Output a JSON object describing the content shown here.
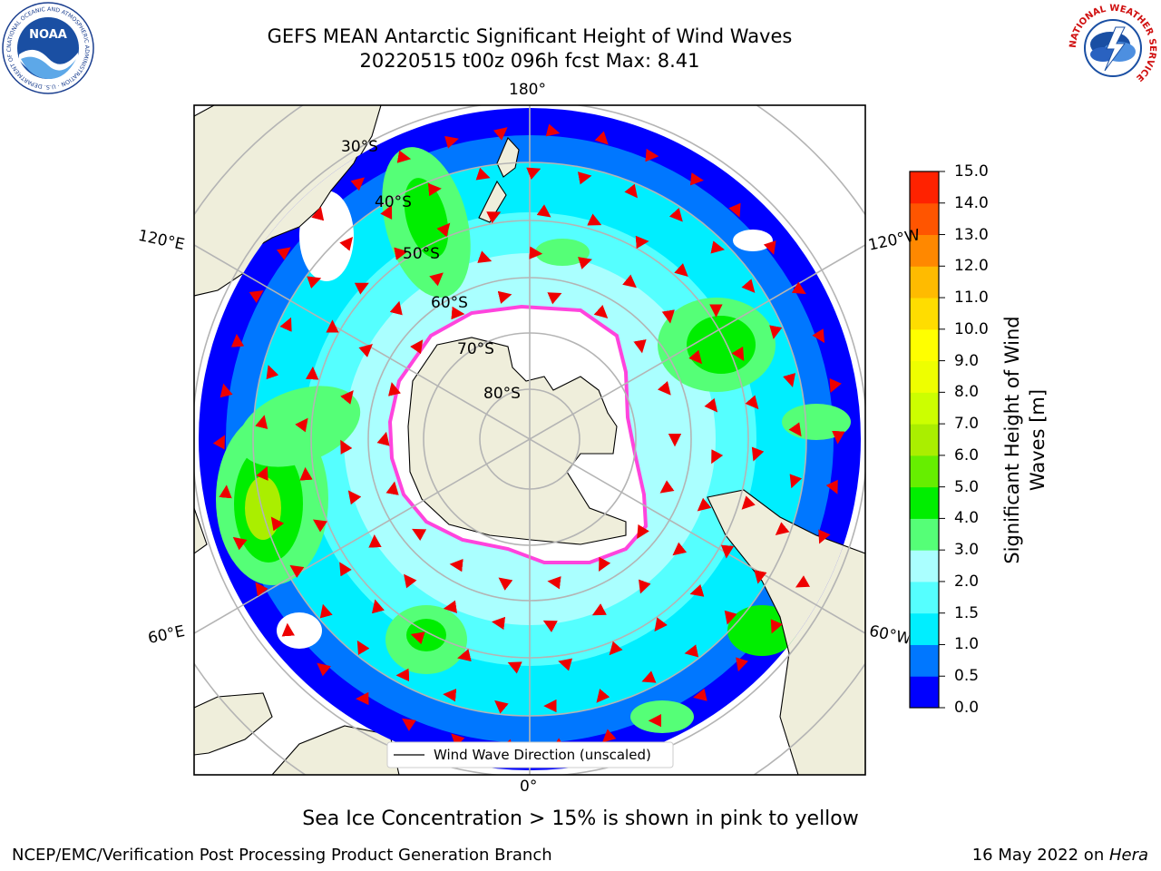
{
  "header": {
    "title_line1": "GEFS MEAN Antarctic Significant Height of Wind Waves",
    "title_line2": "20220515 t00z 096h fcst   Max: 8.41"
  },
  "logos": {
    "noaa": "NOAA",
    "noaa_ring": "NATIONAL OCEANIC AND ATMOSPHERIC ADMINISTRATION · U.S. DEPARTMENT OF COMMERCE",
    "nws_ring": "NATIONAL WEATHER SERVICE"
  },
  "map": {
    "longitude_labels": {
      "top": "180°",
      "bottom": "0°",
      "upper_left": "120°E",
      "upper_right": "120°W",
      "lower_left": "60°E",
      "lower_right": "60°W"
    },
    "latitude_labels": [
      "30°S",
      "40°S",
      "50°S",
      "60°S",
      "70°S",
      "80°S"
    ],
    "legend_label": "Wind Wave Direction (unscaled)",
    "colors": {
      "land": "#efeedb",
      "sea_ice": "#ffffff",
      "ice_edge": "#ff44dd",
      "graticule": "#b4b4b4",
      "arrow": "#ee0000"
    }
  },
  "colorbar": {
    "title_line1": "Significant Height of Wind",
    "title_line2": "Waves [m]",
    "ticks": [
      "15.0",
      "14.0",
      "13.0",
      "12.0",
      "11.0",
      "10.0",
      "9.0",
      "8.0",
      "7.0",
      "6.0",
      "5.0",
      "4.0",
      "3.0",
      "2.0",
      "1.5",
      "1.0",
      "0.5",
      "0.0"
    ],
    "colors_bottom_to_top": [
      "#0000ff",
      "#0077ff",
      "#00eeff",
      "#55ffff",
      "#aaffff",
      "#55ff77",
      "#00ee00",
      "#66ee00",
      "#aaee00",
      "#ccff00",
      "#eeff00",
      "#ffff00",
      "#ffdd00",
      "#ffbb00",
      "#ff8800",
      "#ff5500",
      "#ff2200"
    ]
  },
  "footer": {
    "note": "Sea Ice Concentration > 15% is shown in pink to yellow",
    "left": "NCEP/EMC/Verification Post Processing Product Generation Branch",
    "right_prefix": "16 May 2022 on ",
    "right_host": "Hera"
  }
}
